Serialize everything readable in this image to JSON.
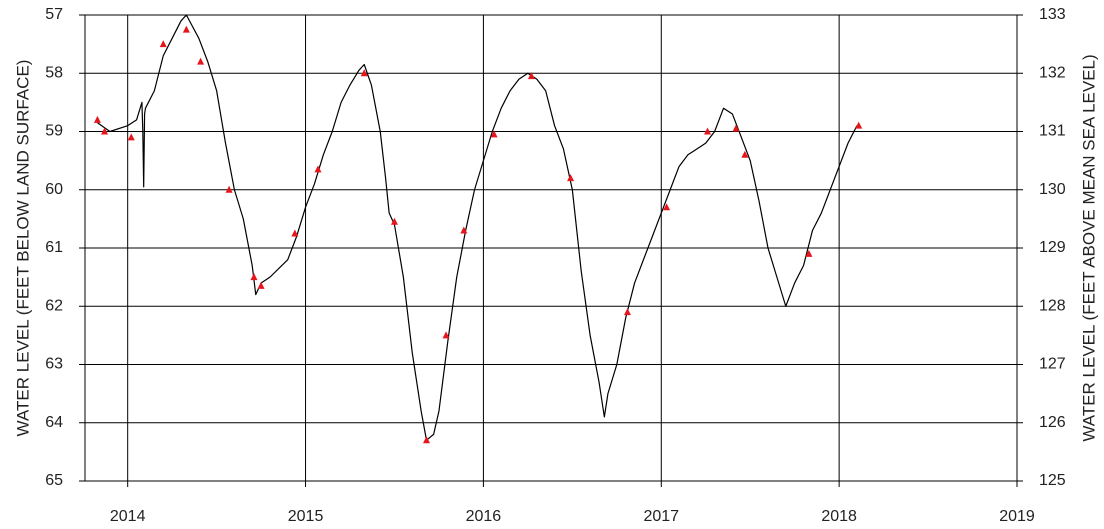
{
  "chart_data": {
    "type": "line",
    "y_label": "WATER LEVEL (FEET BELOW LAND SURFACE)",
    "y2_label": "WATER LEVEL (FEET ABOVE MEAN SEA LEVEL)",
    "xlim": [
      2013.76,
      2019
    ],
    "xticks": [
      2014,
      2015,
      2016,
      2017,
      2018,
      2019
    ],
    "ylim": [
      65,
      57
    ],
    "yticks": [
      57,
      58,
      59,
      60,
      61,
      62,
      63,
      64,
      65
    ],
    "y2lim": [
      125,
      133
    ],
    "y2ticks": [
      125,
      126,
      127,
      128,
      129,
      130,
      131,
      132,
      133
    ],
    "grid": true,
    "series": [
      {
        "color": "#000000",
        "marker": "none",
        "x": [
          2013.83,
          2013.9,
          2014.0,
          2014.05,
          2014.08,
          2014.085,
          2014.09,
          2014.095,
          2014.1,
          2014.15,
          2014.2,
          2014.25,
          2014.3,
          2014.33,
          2014.4,
          2014.45,
          2014.5,
          2014.55,
          2014.6,
          2014.65,
          2014.7,
          2014.72,
          2014.75,
          2014.8,
          2014.9,
          2014.95,
          2015.0,
          2015.05,
          2015.1,
          2015.15,
          2015.2,
          2015.25,
          2015.3,
          2015.33,
          2015.37,
          2015.42,
          2015.45,
          2015.47,
          2015.5,
          2015.55,
          2015.6,
          2015.65,
          2015.68,
          2015.72,
          2015.75,
          2015.8,
          2015.85,
          2015.9,
          2015.95,
          2016.0,
          2016.05,
          2016.1,
          2016.15,
          2016.2,
          2016.25,
          2016.3,
          2016.35,
          2016.4,
          2016.45,
          2016.5,
          2016.55,
          2016.6,
          2016.65,
          2016.68,
          2016.7,
          2016.75,
          2016.8,
          2016.85,
          2016.9,
          2016.95,
          2017.0,
          2017.05,
          2017.1,
          2017.15,
          2017.2,
          2017.25,
          2017.3,
          2017.35,
          2017.4,
          2017.45,
          2017.5,
          2017.55,
          2017.6,
          2017.65,
          2017.7,
          2017.75,
          2017.8,
          2017.85,
          2017.9,
          2017.95,
          2018.0,
          2018.05,
          2018.1
        ],
        "values": [
          58.85,
          59.0,
          58.9,
          58.8,
          58.5,
          59.0,
          59.95,
          58.7,
          58.6,
          58.3,
          57.7,
          57.4,
          57.1,
          57.0,
          57.4,
          57.8,
          58.3,
          59.2,
          60.0,
          60.5,
          61.3,
          61.8,
          61.6,
          61.5,
          61.2,
          60.8,
          60.3,
          59.9,
          59.4,
          59.0,
          58.5,
          58.2,
          57.95,
          57.85,
          58.2,
          59.0,
          59.8,
          60.4,
          60.6,
          61.5,
          62.8,
          63.8,
          64.3,
          64.2,
          63.8,
          62.6,
          61.5,
          60.7,
          60.0,
          59.5,
          59.0,
          58.6,
          58.3,
          58.1,
          58.0,
          58.1,
          58.3,
          58.9,
          59.3,
          60.0,
          61.4,
          62.5,
          63.3,
          63.9,
          63.5,
          63.0,
          62.2,
          61.6,
          61.2,
          60.8,
          60.4,
          60.0,
          59.6,
          59.4,
          59.3,
          59.2,
          59.0,
          58.6,
          58.7,
          59.1,
          59.5,
          60.2,
          61.0,
          61.5,
          62.0,
          61.6,
          61.3,
          60.7,
          60.4,
          60.0,
          59.6,
          59.2,
          58.9
        ]
      },
      {
        "color": "#e8141b",
        "marker": "triangle",
        "x": [
          2013.83,
          2013.87,
          2014.02,
          2014.2,
          2014.33,
          2014.41,
          2014.57,
          2014.71,
          2014.75,
          2014.94,
          2015.07,
          2015.33,
          2015.5,
          2015.68,
          2015.79,
          2015.89,
          2016.06,
          2016.27,
          2016.49,
          2016.81,
          2017.03,
          2017.26,
          2017.42,
          2017.47,
          2017.83,
          2018.11
        ],
        "values": [
          58.8,
          59.0,
          59.1,
          57.5,
          57.25,
          57.8,
          60.0,
          61.5,
          61.65,
          60.75,
          59.65,
          58.0,
          60.55,
          64.3,
          62.5,
          60.7,
          59.05,
          58.05,
          59.8,
          62.1,
          60.3,
          59.0,
          58.95,
          59.4,
          61.1,
          58.9
        ]
      }
    ]
  }
}
